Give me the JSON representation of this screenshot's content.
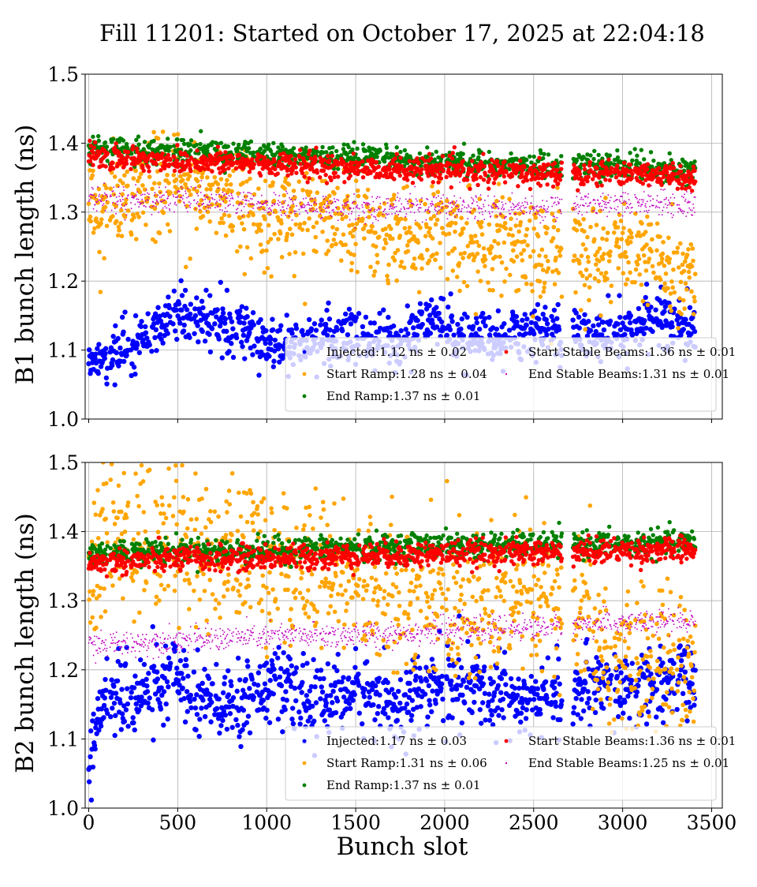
{
  "title": "Fill 11201: Started on October 17, 2025 at 22:04:18",
  "xlabel": "Bunch slot",
  "colors": {
    "injected": "#0000ff",
    "start_ramp": "#ffa500",
    "end_ramp": "#008000",
    "start_stable": "#ff0000",
    "end_stable": "#bf00bf"
  },
  "chart_data": [
    {
      "type": "scatter",
      "panel": "B1",
      "ylabel": "B1 bunch length (ns)",
      "xlim": [
        -20,
        3560
      ],
      "ylim": [
        1.0,
        1.5
      ],
      "xticks": [
        0,
        500,
        1000,
        1500,
        2000,
        2500,
        3000,
        3500
      ],
      "yticks": [
        1.0,
        1.1,
        1.2,
        1.3,
        1.4,
        1.5
      ],
      "grid": true,
      "legend_position": "lower-right",
      "series": [
        {
          "key": "injected",
          "name": "Injected:1.12 ns ± 0.02",
          "mean": 1.12,
          "std": 0.02,
          "marker_size": 3.2,
          "profile": [
            [
              0,
              1.08
            ],
            [
              250,
              1.11
            ],
            [
              500,
              1.155
            ],
            [
              750,
              1.14
            ],
            [
              1000,
              1.11
            ],
            [
              1250,
              1.11
            ],
            [
              1500,
              1.12
            ],
            [
              1750,
              1.11
            ],
            [
              1950,
              1.15
            ],
            [
              2100,
              1.11
            ],
            [
              2500,
              1.13
            ],
            [
              2800,
              1.12
            ],
            [
              3000,
              1.12
            ],
            [
              3200,
              1.15
            ],
            [
              3420,
              1.13
            ]
          ]
        },
        {
          "key": "start_ramp",
          "name": "Start Ramp:1.28 ns ± 0.04",
          "mean": 1.28,
          "std": 0.04,
          "marker_size": 2.8,
          "profile": [
            [
              0,
              1.3
            ],
            [
              250,
              1.32
            ],
            [
              500,
              1.345
            ],
            [
              750,
              1.33
            ],
            [
              1000,
              1.3
            ],
            [
              1250,
              1.31
            ],
            [
              1500,
              1.295
            ],
            [
              1750,
              1.25
            ],
            [
              1950,
              1.28
            ],
            [
              2100,
              1.26
            ],
            [
              2400,
              1.26
            ],
            [
              2650,
              1.24
            ],
            [
              2800,
              1.25
            ],
            [
              3100,
              1.245
            ],
            [
              3300,
              1.215
            ],
            [
              3420,
              1.23
            ]
          ]
        },
        {
          "key": "end_ramp",
          "name": "End Ramp:1.37 ns ± 0.01",
          "mean": 1.37,
          "std": 0.01,
          "marker_size": 2.7,
          "profile": [
            [
              0,
              1.392
            ],
            [
              500,
              1.388
            ],
            [
              1000,
              1.383
            ],
            [
              1500,
              1.377
            ],
            [
              2000,
              1.372
            ],
            [
              2500,
              1.367
            ],
            [
              3000,
              1.367
            ],
            [
              3420,
              1.36
            ]
          ]
        },
        {
          "key": "start_stable",
          "name": "Start Stable Beams:1.36 ns ± 0.01",
          "mean": 1.36,
          "std": 0.01,
          "marker_size": 2.7,
          "profile": [
            [
              0,
              1.38
            ],
            [
              500,
              1.374
            ],
            [
              1000,
              1.37
            ],
            [
              1500,
              1.364
            ],
            [
              2000,
              1.36
            ],
            [
              2500,
              1.356
            ],
            [
              3000,
              1.358
            ],
            [
              3420,
              1.35
            ]
          ]
        },
        {
          "key": "end_stable",
          "name": "End Stable Beams:1.31 ns ± 0.01",
          "mean": 1.31,
          "std": 0.01,
          "marker_size": 1.6,
          "profile": [
            [
              0,
              1.32
            ],
            [
              500,
              1.318
            ],
            [
              1000,
              1.31
            ],
            [
              1500,
              1.305
            ],
            [
              2000,
              1.31
            ],
            [
              2500,
              1.305
            ],
            [
              3000,
              1.315
            ],
            [
              3420,
              1.31
            ]
          ]
        }
      ]
    },
    {
      "type": "scatter",
      "panel": "B2",
      "ylabel": "B2 bunch length (ns)",
      "xlim": [
        -20,
        3560
      ],
      "ylim": [
        1.0,
        1.5
      ],
      "xticks": [
        0,
        500,
        1000,
        1500,
        2000,
        2500,
        3000,
        3500
      ],
      "yticks": [
        1.0,
        1.1,
        1.2,
        1.3,
        1.4,
        1.5
      ],
      "grid": true,
      "legend_position": "lower-right",
      "series": [
        {
          "key": "injected",
          "name": "Injected:1.17 ns ± 0.03",
          "mean": 1.17,
          "std": 0.03,
          "marker_size": 3.2,
          "profile": [
            [
              0,
              1.06
            ],
            [
              60,
              1.16
            ],
            [
              250,
              1.16
            ],
            [
              500,
              1.19
            ],
            [
              750,
              1.14
            ],
            [
              1000,
              1.18
            ],
            [
              1250,
              1.15
            ],
            [
              1500,
              1.17
            ],
            [
              1750,
              1.15
            ],
            [
              1950,
              1.18
            ],
            [
              2200,
              1.17
            ],
            [
              2500,
              1.16
            ],
            [
              2800,
              1.17
            ],
            [
              3000,
              1.17
            ],
            [
              3200,
              1.18
            ],
            [
              3420,
              1.19
            ]
          ]
        },
        {
          "key": "start_ramp",
          "name": "Start Ramp:1.31 ns ± 0.06",
          "mean": 1.31,
          "std": 0.06,
          "marker_size": 2.8,
          "profile": [
            [
              0,
              1.33
            ],
            [
              100,
              1.395
            ],
            [
              300,
              1.39
            ],
            [
              500,
              1.4
            ],
            [
              700,
              1.36
            ],
            [
              1000,
              1.37
            ],
            [
              1250,
              1.335
            ],
            [
              1500,
              1.33
            ],
            [
              1750,
              1.32
            ],
            [
              2000,
              1.31
            ],
            [
              2300,
              1.29
            ],
            [
              2600,
              1.3
            ],
            [
              2800,
              1.28
            ],
            [
              2900,
              1.21
            ],
            [
              3200,
              1.22
            ],
            [
              3420,
              1.21
            ]
          ]
        },
        {
          "key": "end_ramp",
          "name": "End Ramp:1.37 ns ± 0.01",
          "mean": 1.37,
          "std": 0.01,
          "marker_size": 2.7,
          "profile": [
            [
              0,
              1.37
            ],
            [
              500,
              1.372
            ],
            [
              1000,
              1.372
            ],
            [
              1500,
              1.377
            ],
            [
              2000,
              1.38
            ],
            [
              2500,
              1.38
            ],
            [
              3000,
              1.382
            ],
            [
              3420,
              1.385
            ]
          ]
        },
        {
          "key": "start_stable",
          "name": "Start Stable Beams:1.36 ns ± 0.01",
          "mean": 1.36,
          "std": 0.01,
          "marker_size": 2.7,
          "profile": [
            [
              0,
              1.355
            ],
            [
              500,
              1.36
            ],
            [
              1000,
              1.362
            ],
            [
              1500,
              1.365
            ],
            [
              2000,
              1.368
            ],
            [
              2500,
              1.37
            ],
            [
              3000,
              1.372
            ],
            [
              3420,
              1.374
            ]
          ]
        },
        {
          "key": "end_stable",
          "name": "End Stable Beams:1.25 ns ± 0.01",
          "mean": 1.25,
          "std": 0.01,
          "marker_size": 1.6,
          "profile": [
            [
              0,
              1.235
            ],
            [
              500,
              1.243
            ],
            [
              1000,
              1.248
            ],
            [
              1500,
              1.25
            ],
            [
              2000,
              1.257
            ],
            [
              2500,
              1.262
            ],
            [
              3000,
              1.268
            ],
            [
              3420,
              1.27
            ]
          ]
        }
      ]
    }
  ]
}
